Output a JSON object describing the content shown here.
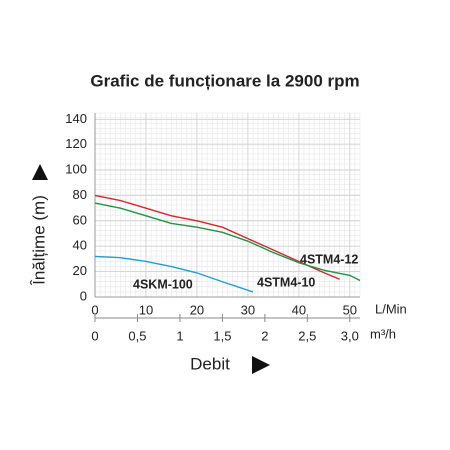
{
  "chart_data": {
    "type": "line",
    "title": "Grafic de funcționare la 2900 rpm",
    "y_label": "Înălțime (m)",
    "x_label": "Debit",
    "x_unit": "L/Min",
    "x2_unit": "m³/h",
    "xlim": [
      0,
      52
    ],
    "xticks": [
      0,
      10,
      20,
      30,
      40,
      50
    ],
    "x2lim": [
      0,
      3.12
    ],
    "x2ticks": [
      0,
      {
        "value": 0.5,
        "label": "0,5"
      },
      1,
      {
        "value": 1.5,
        "label": "1,5"
      },
      2,
      {
        "value": 2.5,
        "label": "2,5"
      },
      {
        "value": 3,
        "label": "3,0"
      }
    ],
    "ylim": [
      0,
      145
    ],
    "yticks": [
      0,
      20,
      40,
      60,
      80,
      100,
      120,
      140
    ],
    "grid": true,
    "series": [
      {
        "name": "4STM4-12",
        "color": "#d7262b",
        "x": [
          0,
          5,
          10,
          15,
          20,
          25,
          30,
          35,
          40,
          45,
          48
        ],
        "values": [
          80,
          76,
          70,
          64,
          60,
          55,
          46,
          37,
          28,
          19,
          14
        ]
      },
      {
        "name": "4STM4-10",
        "color": "#1e9446",
        "x": [
          0,
          5,
          10,
          15,
          20,
          25,
          30,
          35,
          40,
          45,
          50,
          52
        ],
        "values": [
          74,
          70,
          64,
          58,
          55,
          51,
          44,
          35,
          27,
          21,
          17,
          13
        ]
      },
      {
        "name": "4SKM-100",
        "color": "#1ea0d0",
        "x": [
          0,
          5,
          10,
          15,
          20,
          25,
          31
        ],
        "values": [
          32,
          31,
          28,
          24,
          19,
          12,
          4
        ]
      }
    ]
  }
}
